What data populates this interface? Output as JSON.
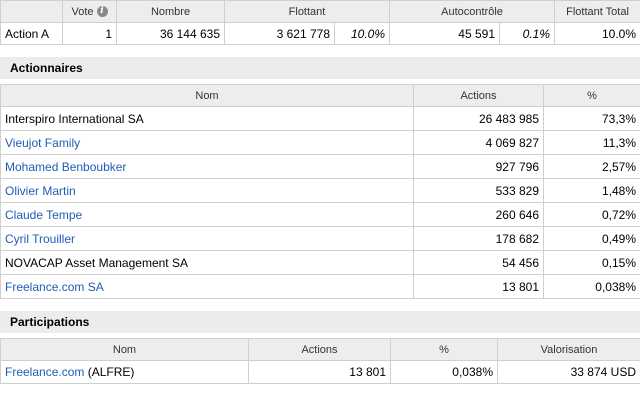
{
  "top_table": {
    "headers": {
      "vote": "Vote",
      "nombre": "Nombre",
      "flottant": "Flottant",
      "autocontrole": "Autocontrôle",
      "flottant_total": "Flottant Total"
    },
    "row": {
      "name": "Action A",
      "vote": "1",
      "nombre": "36 144 635",
      "flottant": "3 621 778",
      "flottant_pct": "10.0%",
      "autocontrole": "45 591",
      "autocontrole_pct": "0.1%",
      "flottant_total": "10.0%"
    }
  },
  "actionnaires": {
    "title": "Actionnaires",
    "headers": {
      "nom": "Nom",
      "actions": "Actions",
      "pct": "%"
    },
    "rows": [
      {
        "nom": "Interspiro International SA",
        "actions": "26 483 985",
        "pct": "73,3%",
        "link": false
      },
      {
        "nom": "Vieujot Family",
        "actions": "4 069 827",
        "pct": "11,3%",
        "link": true
      },
      {
        "nom": "Mohamed Benboubker",
        "actions": "927 796",
        "pct": "2,57%",
        "link": true
      },
      {
        "nom": "Olivier Martin",
        "actions": "533 829",
        "pct": "1,48%",
        "link": true
      },
      {
        "nom": "Claude Tempe",
        "actions": "260 646",
        "pct": "0,72%",
        "link": true
      },
      {
        "nom": "Cyril Trouiller",
        "actions": "178 682",
        "pct": "0,49%",
        "link": true
      },
      {
        "nom": "NOVACAP Asset Management SA",
        "actions": "54 456",
        "pct": "0,15%",
        "link": false
      },
      {
        "nom": "Freelance.com SA",
        "actions": "13 801",
        "pct": "0,038%",
        "link": true
      }
    ]
  },
  "participations": {
    "title": "Participations",
    "headers": {
      "nom": "Nom",
      "actions": "Actions",
      "pct": "%",
      "valorisation": "Valorisation"
    },
    "rows": [
      {
        "nom_link": "Freelance.com",
        "nom_suffix": " (ALFRE)",
        "actions": "13 801",
        "pct": "0,038%",
        "valorisation": "33 874 USD"
      }
    ]
  },
  "icons": {
    "vote_info": "info-icon"
  },
  "colors": {
    "link": "#1f5cb8",
    "header_bg": "#ededed",
    "border": "#cfcfcf"
  }
}
